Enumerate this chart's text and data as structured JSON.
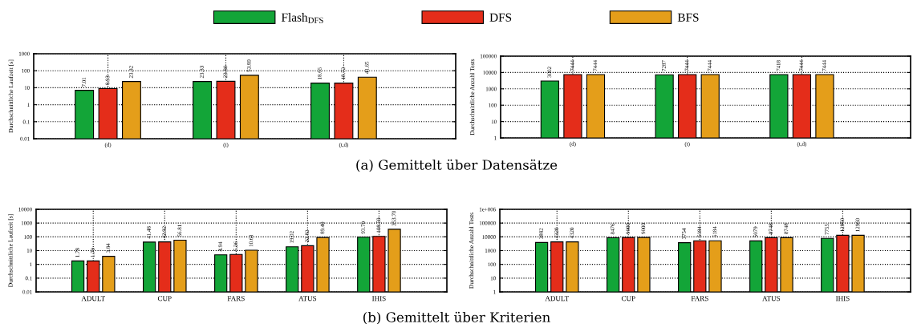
{
  "chart_data": [
    {
      "type": "bar",
      "ylabel": "Durchschnittliche Laufzeit [s]",
      "categories": [
        "(d)",
        "(t)",
        "(t,d)"
      ],
      "log": true,
      "ylim": [
        0.01,
        1000
      ],
      "yticks": [
        0.01,
        0.1,
        1,
        10,
        100,
        1000
      ],
      "grid": true,
      "legend": "top",
      "annotations": [
        "(a) Gemittelt über Datensätze"
      ],
      "series": [
        {
          "name": "Flash$_{DFS}$",
          "color": "#13a538",
          "values": [
            7.01,
            23.33,
            18.65
          ],
          "value_labels": [
            "7.01",
            "23.33",
            "18.65"
          ]
        },
        {
          "name": "DFS",
          "color": "#e42d1a",
          "values": [
            8.93,
            23.8,
            18.72
          ],
          "value_labels": [
            "8.93",
            "23.80",
            "18.72"
          ]
        },
        {
          "name": "BFS",
          "color": "#e49e1a",
          "values": [
            23.32,
            53.89,
            41.65
          ],
          "value_labels": [
            "23.32",
            "53.89",
            "41.65"
          ]
        }
      ]
    },
    {
      "type": "bar",
      "ylabel": "Durchschnittliche Anzahl Tests",
      "categories": [
        "(d)",
        "(t)",
        "(t,d)"
      ],
      "log": true,
      "ylim": [
        1,
        100000
      ],
      "yticks": [
        1,
        10,
        100,
        1000,
        10000,
        100000
      ],
      "grid": true,
      "data_labels": true,
      "series": [
        {
          "color": "#13a538",
          "values": [
            3002,
            7287,
            7418
          ]
        },
        {
          "color": "#e42d1a",
          "values": [
            7444,
            7444,
            7444
          ]
        },
        {
          "color": "#e49e1a",
          "values": [
            7444,
            7444,
            7444
          ]
        }
      ]
    },
    {
      "type": "bar",
      "ylabel": "Durchschnittliche Laufzeit [s]",
      "categories": [
        "ADULT",
        "CUP",
        "FARS",
        "ATUS",
        "IHIS"
      ],
      "log": true,
      "ylim": [
        0.01,
        10000
      ],
      "yticks": [
        0.01,
        0.1,
        1,
        10,
        100,
        1000,
        10000
      ],
      "grid": true,
      "annotations": [
        "(b) Gemittelt über Kriterien"
      ],
      "series": [
        {
          "color": "#13a538",
          "values": [
            1.78,
            41.48,
            4.94,
            19.02,
            93.7
          ],
          "value_labels": [
            "1.78",
            "41.48",
            "4.94",
            "19.02",
            "93.70"
          ]
        },
        {
          "color": "#e42d1a",
          "values": [
            1.79,
            42.92,
            5.26,
            22.82,
            108.59
          ],
          "value_labels": [
            "1.79",
            "42.92",
            "5.26",
            "22.82",
            "108.59"
          ]
        },
        {
          "color": "#e49e1a",
          "values": [
            3.84,
            56.81,
            10.61,
            89.4,
            353.7
          ],
          "value_labels": [
            "3.84",
            "56.81",
            "10.61",
            "89.40",
            "353.70"
          ]
        }
      ]
    },
    {
      "type": "bar",
      "ylabel": "Durchschnittliche Anzahl Tests",
      "categories": [
        "ADULT",
        "CUP",
        "FARS",
        "ATUS",
        "IHIS"
      ],
      "log": true,
      "ylim": [
        1,
        1000000
      ],
      "yticks": [
        1,
        10,
        100,
        1000,
        10000,
        100000,
        {
          "value": 1000000,
          "label": "1e+006"
        }
      ],
      "grid": true,
      "data_labels": true,
      "series": [
        {
          "color": "#13a538",
          "values": [
            3882,
            8476,
            3754,
            5079,
            7755
          ]
        },
        {
          "color": "#e42d1a",
          "values": [
            4320,
            9000,
            5184,
            8748,
            12960
          ]
        },
        {
          "color": "#e49e1a",
          "values": [
            4320,
            9000,
            5184,
            8748,
            12960
          ]
        }
      ]
    }
  ]
}
